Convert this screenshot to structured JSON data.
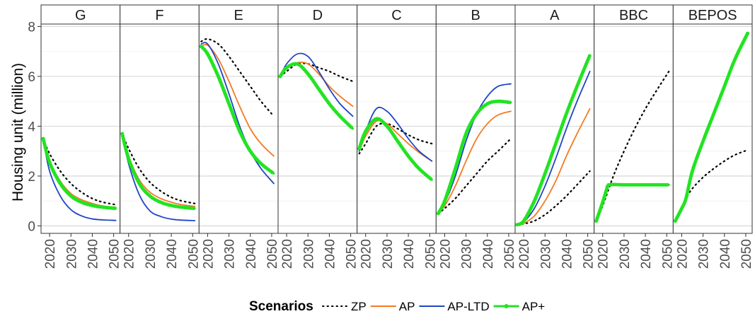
{
  "chart_data": {
    "type": "line",
    "ylabel": "Housing unit (million)",
    "xlabel": "",
    "ylim": [
      -0.3,
      8.1
    ],
    "xlim": [
      2016,
      2053
    ],
    "yticks": [
      0,
      2,
      4,
      6,
      8
    ],
    "xticks": [
      2020,
      2030,
      2040,
      2050
    ],
    "legend": {
      "title": "Scenarios",
      "position": "bottom"
    },
    "series_styles": [
      {
        "name": "ZP",
        "color": "#000000",
        "style": "dotted"
      },
      {
        "name": "AP",
        "color": "#f47a20",
        "style": "solid"
      },
      {
        "name": "AP-LTD",
        "color": "#1f45c4",
        "style": "solid"
      },
      {
        "name": "AP+",
        "color": "#22e322",
        "style": "solid-dots"
      }
    ],
    "panels": [
      {
        "label": "G",
        "series": [
          {
            "name": "ZP",
            "x": [
              2017,
              2020,
              2025,
              2030,
              2035,
              2040,
              2045,
              2051
            ],
            "values": [
              3.5,
              2.9,
              2.2,
              1.7,
              1.35,
              1.1,
              0.95,
              0.85
            ]
          },
          {
            "name": "AP",
            "x": [
              2017,
              2020,
              2025,
              2030,
              2035,
              2040,
              2045,
              2051
            ],
            "values": [
              3.5,
              2.6,
              1.8,
              1.3,
              1.05,
              0.9,
              0.8,
              0.75
            ]
          },
          {
            "name": "AP-LTD",
            "x": [
              2017,
              2020,
              2025,
              2030,
              2035,
              2040,
              2045,
              2051
            ],
            "values": [
              3.5,
              2.2,
              1.2,
              0.65,
              0.4,
              0.28,
              0.24,
              0.22
            ]
          },
          {
            "name": "AP+",
            "x": [
              2017,
              2020,
              2025,
              2030,
              2035,
              2040,
              2045,
              2051
            ],
            "values": [
              3.5,
              2.55,
              1.7,
              1.2,
              0.95,
              0.82,
              0.75,
              0.7
            ]
          }
        ]
      },
      {
        "label": "F",
        "series": [
          {
            "name": "ZP",
            "x": [
              2017,
              2020,
              2025,
              2030,
              2035,
              2040,
              2045,
              2051
            ],
            "values": [
              3.7,
              3.1,
              2.3,
              1.75,
              1.4,
              1.15,
              1.0,
              0.9
            ]
          },
          {
            "name": "AP",
            "x": [
              2017,
              2020,
              2025,
              2030,
              2035,
              2040,
              2045,
              2051
            ],
            "values": [
              3.7,
              2.8,
              1.85,
              1.35,
              1.1,
              0.95,
              0.85,
              0.78
            ]
          },
          {
            "name": "AP-LTD",
            "x": [
              2017,
              2020,
              2025,
              2030,
              2035,
              2040,
              2045,
              2051
            ],
            "values": [
              3.7,
              2.5,
              1.25,
              0.6,
              0.38,
              0.27,
              0.23,
              0.21
            ]
          },
          {
            "name": "AP+",
            "x": [
              2017,
              2020,
              2025,
              2030,
              2035,
              2040,
              2045,
              2051
            ],
            "values": [
              3.7,
              2.7,
              1.7,
              1.2,
              0.95,
              0.82,
              0.75,
              0.7
            ]
          }
        ]
      },
      {
        "label": "E",
        "series": [
          {
            "name": "ZP",
            "x": [
              2017,
              2020,
              2025,
              2030,
              2035,
              2040,
              2045,
              2051
            ],
            "values": [
              7.4,
              7.5,
              7.3,
              6.8,
              6.2,
              5.6,
              5.0,
              4.4
            ]
          },
          {
            "name": "AP",
            "x": [
              2017,
              2020,
              2025,
              2030,
              2035,
              2040,
              2045,
              2051
            ],
            "values": [
              7.2,
              7.25,
              6.7,
              5.8,
              4.8,
              3.9,
              3.3,
              2.8
            ]
          },
          {
            "name": "AP-LTD",
            "x": [
              2017,
              2020,
              2025,
              2030,
              2035,
              2040,
              2045,
              2051
            ],
            "values": [
              7.3,
              7.3,
              6.5,
              5.3,
              4.0,
              3.0,
              2.3,
              1.7
            ]
          },
          {
            "name": "AP+",
            "x": [
              2017,
              2020,
              2025,
              2030,
              2035,
              2040,
              2045,
              2051
            ],
            "values": [
              7.2,
              6.9,
              6.0,
              4.9,
              3.8,
              3.0,
              2.5,
              2.1
            ]
          }
        ]
      },
      {
        "label": "D",
        "series": [
          {
            "name": "ZP",
            "x": [
              2017,
              2020,
              2025,
              2030,
              2035,
              2040,
              2045,
              2051
            ],
            "values": [
              6.0,
              6.2,
              6.5,
              6.5,
              6.35,
              6.2,
              6.0,
              5.8
            ]
          },
          {
            "name": "AP",
            "x": [
              2017,
              2020,
              2025,
              2030,
              2035,
              2040,
              2045,
              2051
            ],
            "values": [
              6.0,
              6.3,
              6.55,
              6.5,
              6.1,
              5.6,
              5.2,
              4.8
            ]
          },
          {
            "name": "AP-LTD",
            "x": [
              2017,
              2020,
              2025,
              2030,
              2035,
              2040,
              2045,
              2051
            ],
            "values": [
              6.0,
              6.5,
              6.9,
              6.8,
              6.2,
              5.5,
              4.9,
              4.4
            ]
          },
          {
            "name": "AP+",
            "x": [
              2017,
              2020,
              2025,
              2030,
              2035,
              2040,
              2045,
              2051
            ],
            "values": [
              6.0,
              6.35,
              6.5,
              6.1,
              5.5,
              4.9,
              4.4,
              3.9
            ]
          }
        ]
      },
      {
        "label": "C",
        "series": [
          {
            "name": "ZP",
            "x": [
              2017,
              2020,
              2025,
              2030,
              2035,
              2040,
              2045,
              2051
            ],
            "values": [
              2.9,
              3.3,
              4.0,
              4.1,
              3.9,
              3.65,
              3.45,
              3.3
            ]
          },
          {
            "name": "AP",
            "x": [
              2017,
              2020,
              2025,
              2030,
              2035,
              2040,
              2045,
              2051
            ],
            "values": [
              3.0,
              3.6,
              4.2,
              4.1,
              3.7,
              3.3,
              2.95,
              2.6
            ]
          },
          {
            "name": "AP-LTD",
            "x": [
              2017,
              2020,
              2025,
              2030,
              2035,
              2040,
              2045,
              2051
            ],
            "values": [
              3.0,
              3.8,
              4.7,
              4.6,
              4.1,
              3.5,
              3.0,
              2.6
            ]
          },
          {
            "name": "AP+",
            "x": [
              2017,
              2020,
              2025,
              2030,
              2035,
              2040,
              2045,
              2051
            ],
            "values": [
              3.1,
              3.8,
              4.3,
              4.0,
              3.4,
              2.8,
              2.3,
              1.85
            ]
          }
        ]
      },
      {
        "label": "B",
        "series": [
          {
            "name": "ZP",
            "x": [
              2017,
              2020,
              2025,
              2030,
              2035,
              2040,
              2045,
              2051
            ],
            "values": [
              0.5,
              0.7,
              1.1,
              1.6,
              2.1,
              2.6,
              3.0,
              3.5
            ]
          },
          {
            "name": "AP",
            "x": [
              2017,
              2020,
              2025,
              2030,
              2035,
              2040,
              2045,
              2051
            ],
            "values": [
              0.5,
              0.8,
              1.6,
              2.6,
              3.5,
              4.1,
              4.45,
              4.6
            ]
          },
          {
            "name": "AP-LTD",
            "x": [
              2017,
              2020,
              2025,
              2030,
              2035,
              2040,
              2045,
              2051
            ],
            "values": [
              0.5,
              0.9,
              2.0,
              3.4,
              4.5,
              5.2,
              5.6,
              5.7
            ]
          },
          {
            "name": "AP+",
            "x": [
              2017,
              2020,
              2025,
              2030,
              2035,
              2040,
              2045,
              2051
            ],
            "values": [
              0.5,
              1.0,
              2.3,
              3.7,
              4.5,
              4.9,
              5.0,
              4.95
            ]
          }
        ]
      },
      {
        "label": "A",
        "series": [
          {
            "name": "ZP",
            "x": [
              2017,
              2020,
              2025,
              2030,
              2035,
              2040,
              2045,
              2051
            ],
            "values": [
              0.05,
              0.08,
              0.2,
              0.45,
              0.8,
              1.2,
              1.65,
              2.2
            ]
          },
          {
            "name": "AP",
            "x": [
              2017,
              2020,
              2025,
              2030,
              2035,
              2040,
              2045,
              2051
            ],
            "values": [
              0.05,
              0.1,
              0.4,
              1.0,
              1.8,
              2.8,
              3.7,
              4.7
            ]
          },
          {
            "name": "AP-LTD",
            "x": [
              2017,
              2020,
              2025,
              2030,
              2035,
              2040,
              2045,
              2051
            ],
            "values": [
              0.05,
              0.15,
              0.7,
              1.6,
              2.7,
              3.9,
              5.0,
              6.2
            ]
          },
          {
            "name": "AP+",
            "x": [
              2017,
              2020,
              2025,
              2030,
              2035,
              2040,
              2045,
              2051
            ],
            "values": [
              0.05,
              0.2,
              1.0,
              2.1,
              3.3,
              4.5,
              5.6,
              6.85
            ]
          }
        ]
      },
      {
        "label": "BBC",
        "series": [
          {
            "name": "ZP",
            "x": [
              2017,
              2020,
              2025,
              2030,
              2035,
              2040,
              2045,
              2051
            ],
            "values": [
              0.2,
              0.8,
              2.0,
              3.0,
              3.9,
              4.7,
              5.4,
              6.2
            ]
          },
          {
            "name": "AP+",
            "x": [
              2017,
              2020,
              2022,
              2023,
              2030,
              2040,
              2051
            ],
            "values": [
              0.2,
              0.95,
              1.5,
              1.65,
              1.65,
              1.65,
              1.65
            ]
          }
        ]
      },
      {
        "label": "BEPOS",
        "series": [
          {
            "name": "ZP",
            "x": [
              2017,
              2020,
              2022,
              2025,
              2030,
              2035,
              2040,
              2045,
              2051
            ],
            "values": [
              0.2,
              0.7,
              1.1,
              1.5,
              1.95,
              2.3,
              2.6,
              2.85,
              3.05
            ]
          },
          {
            "name": "AP+",
            "x": [
              2017,
              2020,
              2022,
              2025,
              2030,
              2035,
              2040,
              2045,
              2051
            ],
            "values": [
              0.2,
              0.7,
              1.1,
              2.2,
              3.4,
              4.5,
              5.6,
              6.7,
              7.75
            ]
          }
        ]
      }
    ]
  }
}
